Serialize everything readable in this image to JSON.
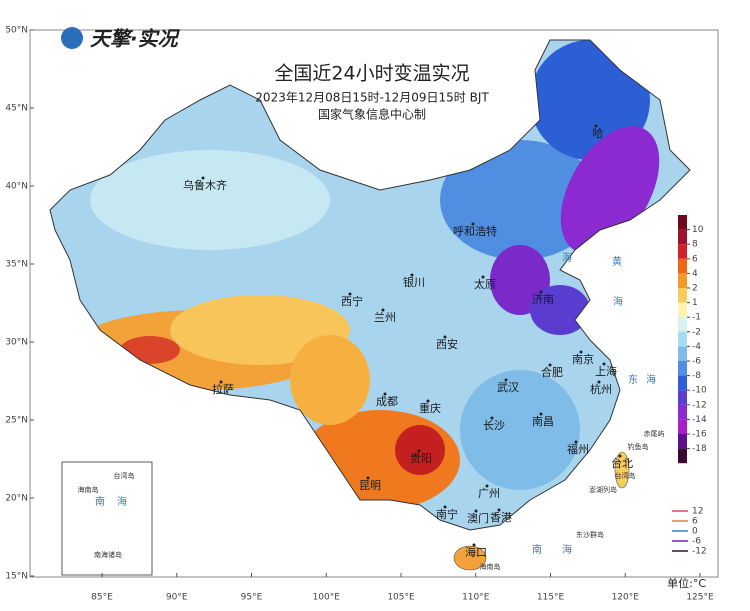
{
  "logo": "天擎·实况",
  "header": {
    "title": "全国近24小时变温实况",
    "subtitle": "2023年12月08日15时-12月09日15时 BJT",
    "agency": "国家气象信息中心制"
  },
  "axes": {
    "lat_ticks": [
      {
        "value": 50,
        "label": "50°N"
      },
      {
        "value": 45,
        "label": "45°N"
      },
      {
        "value": 40,
        "label": "40°N"
      },
      {
        "value": 35,
        "label": "35°N"
      },
      {
        "value": 30,
        "label": "30°N"
      },
      {
        "value": 25,
        "label": "25°N"
      },
      {
        "value": 20,
        "label": "20°N"
      },
      {
        "value": 15,
        "label": "15°N"
      }
    ],
    "lon_ticks": [
      {
        "value": 85,
        "label": "85°E"
      },
      {
        "value": 90,
        "label": "90°E"
      },
      {
        "value": 95,
        "label": "95°E"
      },
      {
        "value": 100,
        "label": "100°E"
      },
      {
        "value": 105,
        "label": "105°E"
      },
      {
        "value": 110,
        "label": "110°E"
      },
      {
        "value": 115,
        "label": "115°E"
      },
      {
        "value": 120,
        "label": "120°E"
      },
      {
        "value": 125,
        "label": "125°E"
      }
    ]
  },
  "colorbar": {
    "ticks": [
      10,
      8,
      6,
      4,
      2,
      1,
      -1,
      -2,
      -4,
      -6,
      -8,
      -10,
      -12,
      -14,
      -16,
      -18
    ],
    "colors": [
      "#6e0a1e",
      "#9e1030",
      "#d0202a",
      "#f06418",
      "#f59a28",
      "#f8cc5c",
      "#fff3b0",
      "#d9f2ee",
      "#a8dcef",
      "#7fbde8",
      "#4f8ee0",
      "#2c5fd6",
      "#5a3cd0",
      "#8a2ad0",
      "#a81ec8",
      "#5a1090",
      "#3a0a30"
    ]
  },
  "contour_legend": {
    "labels": [
      12,
      6,
      0,
      -6,
      -12
    ],
    "colors": [
      "#d87a8a",
      "#f0a060",
      "#6aa0e0",
      "#8a5ad8",
      "#6a4a6a"
    ]
  },
  "unit": "单位:°C",
  "cities": [
    "乌鲁木齐",
    "呼和浩特",
    "银川",
    "太原",
    "济南",
    "西宁",
    "兰州",
    "西安",
    "南京",
    "合肥",
    "上海",
    "武汉",
    "杭州",
    "成都",
    "重庆",
    "长沙",
    "南昌",
    "福州",
    "台北",
    "贵阳",
    "昆明",
    "拉萨",
    "南宁",
    "广州",
    "澳门",
    "香港",
    "海口",
    "哈"
  ],
  "place_labels": [
    "黄",
    "海",
    "海",
    "东",
    "海",
    "南",
    "海",
    "钓鱼岛",
    "赤尾屿",
    "澎湖列岛",
    "东沙群岛",
    "台湾岛",
    "海南岛"
  ],
  "inset_labels": [
    "台湾岛",
    "海南岛",
    "南",
    "海",
    "南海诸岛"
  ]
}
